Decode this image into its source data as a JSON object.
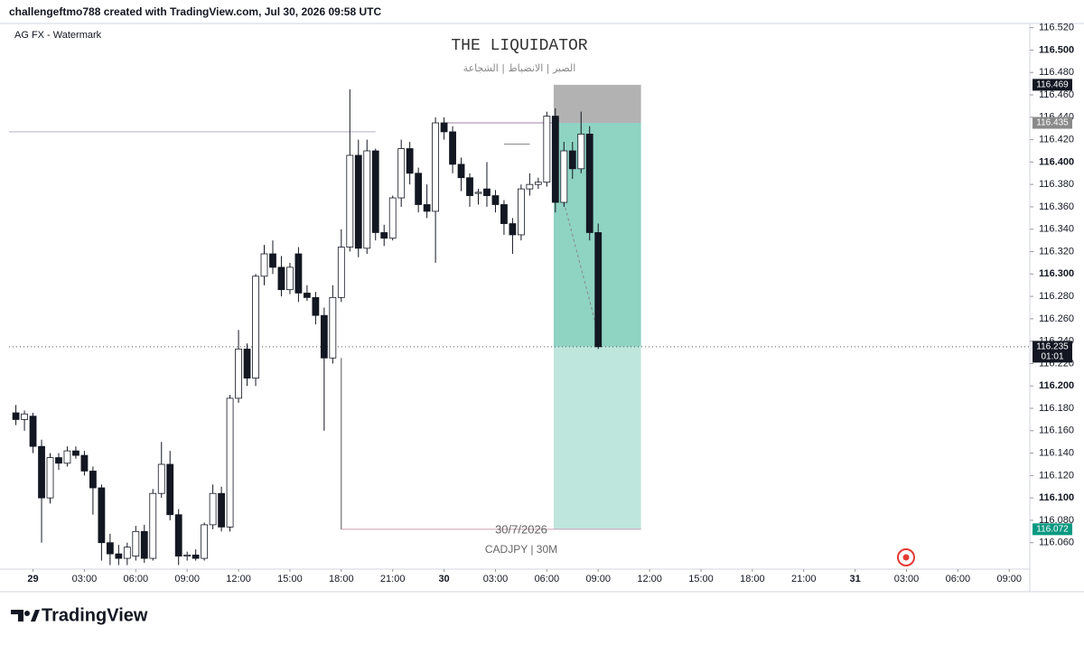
{
  "header": "challengeftmo788 created with TradingView.com, Jul 30, 2026 09:58 UTC",
  "watermark": "AG FX - Watermark",
  "logo": "TradingView",
  "chart_data": {
    "type": "candlestick",
    "title": "THE LIQUIDATOR",
    "subtitle": "الصبر | الانضباط | الشجاعة",
    "date_label": "30/7/2026",
    "symbol_label": "CADJPY | 30M",
    "countdown": "01:01",
    "up_color": "#ffffff",
    "down_color": "#131722",
    "xlim": [
      -1.4,
      58.2
    ],
    "ylim": [
      116.038,
      116.527
    ],
    "xticks": [
      {
        "value": 0,
        "label": "29"
      },
      {
        "value": 3,
        "label": "03:00"
      },
      {
        "value": 6,
        "label": "06:00"
      },
      {
        "value": 9,
        "label": "09:00"
      },
      {
        "value": 12,
        "label": "12:00"
      },
      {
        "value": 15,
        "label": "15:00"
      },
      {
        "value": 18,
        "label": "18:00"
      },
      {
        "value": 21,
        "label": "21:00"
      },
      {
        "value": 24,
        "label": "30"
      },
      {
        "value": 27,
        "label": "03:00"
      },
      {
        "value": 30,
        "label": "06:00"
      },
      {
        "value": 33,
        "label": "09:00"
      },
      {
        "value": 36,
        "label": "12:00"
      },
      {
        "value": 39,
        "label": "15:00"
      },
      {
        "value": 42,
        "label": "18:00"
      },
      {
        "value": 45,
        "label": "21:00"
      },
      {
        "value": 48,
        "label": "31"
      },
      {
        "value": 51,
        "label": "03:00"
      },
      {
        "value": 54,
        "label": "06:00"
      },
      {
        "value": 57,
        "label": "09:00"
      }
    ],
    "yticks": [
      {
        "value": 116.06,
        "label": "116.060"
      },
      {
        "value": 116.08,
        "label": "116.080"
      },
      {
        "value": 116.1,
        "label": "116.100"
      },
      {
        "value": 116.12,
        "label": "116.120"
      },
      {
        "value": 116.14,
        "label": "116.140"
      },
      {
        "value": 116.16,
        "label": "116.160"
      },
      {
        "value": 116.18,
        "label": "116.180"
      },
      {
        "value": 116.2,
        "label": "116.200"
      },
      {
        "value": 116.22,
        "label": "116.220"
      },
      {
        "value": 116.24,
        "label": "116.240"
      },
      {
        "value": 116.26,
        "label": "116.260"
      },
      {
        "value": 116.28,
        "label": "116.280"
      },
      {
        "value": 116.3,
        "label": "116.300"
      },
      {
        "value": 116.32,
        "label": "116.320"
      },
      {
        "value": 116.34,
        "label": "116.340"
      },
      {
        "value": 116.36,
        "label": "116.360"
      },
      {
        "value": 116.38,
        "label": "116.380"
      },
      {
        "value": 116.4,
        "label": "116.400"
      },
      {
        "value": 116.42,
        "label": "116.420"
      },
      {
        "value": 116.44,
        "label": "116.440"
      },
      {
        "value": 116.46,
        "label": "116.460"
      },
      {
        "value": 116.48,
        "label": "116.480"
      },
      {
        "value": 116.5,
        "label": "116.500"
      },
      {
        "value": 116.52,
        "label": "116.520"
      }
    ],
    "x": [
      -1,
      -0.5,
      0,
      0.5,
      1,
      1.5,
      2,
      2.5,
      3,
      3.5,
      4,
      4.5,
      5,
      5.5,
      6,
      6.5,
      7,
      7.5,
      8,
      8.5,
      9,
      9.5,
      10,
      10.5,
      11,
      11.5,
      12,
      12.5,
      13,
      13.5,
      14,
      14.5,
      15,
      15.5,
      16,
      16.5,
      17,
      17.5,
      18,
      18.5,
      19,
      19.5,
      20,
      20.5,
      21,
      21.5,
      22,
      22.5,
      23,
      23.5,
      24,
      24.5,
      25,
      25.5,
      26,
      26.5,
      27,
      27.5,
      28,
      28.5,
      29,
      29.5,
      30,
      30.5,
      31,
      31.5,
      32,
      32.5,
      33
    ],
    "open": [
      116.176,
      116.17,
      116.173,
      116.146,
      116.1,
      116.136,
      116.131,
      116.142,
      116.138,
      116.124,
      116.109,
      116.06,
      116.05,
      116.046,
      116.048,
      116.07,
      116.046,
      116.104,
      116.13,
      116.085,
      116.048,
      116.049,
      116.046,
      116.076,
      116.104,
      116.074,
      116.189,
      116.233,
      116.207,
      116.298,
      116.318,
      116.306,
      116.286,
      116.318,
      116.283,
      116.279,
      116.263,
      116.225,
      116.279,
      116.324,
      116.406,
      116.323,
      116.41,
      116.337,
      116.332,
      116.368,
      116.412,
      116.39,
      116.362,
      116.356,
      116.435,
      116.427,
      116.398,
      116.386,
      116.372,
      116.376,
      116.37,
      116.362,
      116.345,
      116.335,
      116.376,
      116.38,
      116.382,
      116.441,
      116.364,
      116.41,
      116.394,
      116.425,
      116.337
    ],
    "high": [
      116.183,
      116.178,
      116.176,
      116.152,
      116.14,
      116.14,
      116.146,
      116.146,
      116.142,
      116.128,
      116.112,
      116.068,
      116.058,
      116.06,
      116.075,
      116.076,
      116.108,
      116.15,
      116.142,
      116.09,
      116.052,
      116.054,
      116.078,
      116.112,
      116.11,
      116.192,
      116.25,
      116.238,
      116.3,
      116.326,
      116.33,
      116.316,
      116.31,
      116.324,
      116.29,
      116.284,
      116.27,
      116.29,
      116.34,
      116.465,
      116.42,
      116.42,
      116.412,
      116.344,
      116.37,
      116.42,
      116.418,
      116.395,
      116.38,
      116.44,
      116.44,
      116.432,
      116.404,
      116.39,
      116.376,
      116.4,
      116.375,
      116.366,
      116.35,
      116.38,
      116.39,
      116.386,
      116.445,
      116.448,
      116.418,
      116.418,
      116.445,
      116.432,
      116.345
    ],
    "low": [
      116.165,
      116.16,
      116.14,
      116.06,
      116.095,
      116.125,
      116.128,
      116.135,
      116.12,
      116.085,
      116.044,
      116.04,
      116.04,
      116.04,
      116.044,
      116.042,
      116.044,
      116.1,
      116.08,
      116.04,
      116.044,
      116.044,
      116.044,
      116.072,
      116.07,
      116.07,
      116.185,
      116.2,
      116.2,
      116.29,
      116.3,
      116.28,
      116.282,
      116.275,
      116.276,
      116.255,
      116.16,
      116.22,
      116.275,
      116.32,
      116.315,
      116.318,
      116.33,
      116.325,
      116.33,
      116.36,
      116.38,
      116.355,
      116.35,
      116.31,
      116.42,
      116.39,
      116.374,
      116.36,
      116.362,
      116.36,
      116.355,
      116.335,
      116.318,
      116.33,
      116.37,
      116.376,
      116.378,
      116.355,
      116.36,
      116.385,
      116.39,
      116.33,
      116.233
    ],
    "close": [
      116.17,
      116.175,
      116.146,
      116.1,
      116.136,
      116.131,
      116.142,
      116.138,
      116.124,
      116.109,
      116.06,
      116.05,
      116.046,
      116.056,
      116.07,
      116.046,
      116.104,
      116.13,
      116.085,
      116.048,
      116.049,
      116.046,
      116.076,
      116.104,
      116.074,
      116.189,
      116.233,
      116.207,
      116.298,
      116.318,
      116.306,
      116.286,
      116.306,
      116.283,
      116.279,
      116.263,
      116.225,
      116.279,
      116.324,
      116.406,
      116.323,
      116.41,
      116.337,
      116.332,
      116.368,
      116.412,
      116.39,
      116.362,
      116.356,
      116.435,
      116.427,
      116.398,
      116.386,
      116.37,
      116.373,
      116.37,
      116.362,
      116.345,
      116.335,
      116.376,
      116.38,
      116.382,
      116.441,
      116.364,
      116.41,
      116.394,
      116.425,
      116.337,
      116.235
    ],
    "levels": [
      {
        "value": 116.427,
        "x": [
          -1.4,
          20
        ],
        "color": "#b8aec9"
      },
      {
        "value": 116.435,
        "x": [
          23.9,
          30.4
        ],
        "color": "#a07fa6"
      },
      {
        "value": 116.416,
        "x": [
          27.5,
          29
        ],
        "color": "#8a8a8a"
      },
      {
        "value": 116.072,
        "x": [
          18,
          35.5
        ],
        "color": "#c9a0b5"
      }
    ],
    "vlines": [
      {
        "x": 18,
        "y": [
          116.072,
          116.225
        ],
        "color": "#555555"
      }
    ],
    "trend": {
      "x": [
        31,
        33.2
      ],
      "y": [
        116.364,
        116.235
      ],
      "color": "#888888"
    },
    "position": {
      "x": [
        30.4,
        35.5
      ],
      "stop": 116.469,
      "entry": 116.435,
      "current": 116.235,
      "target": 116.072,
      "stop_color": "#b2b2b2",
      "profit_color": "#8fd3c3",
      "target_color": "#bfe6dd"
    }
  }
}
